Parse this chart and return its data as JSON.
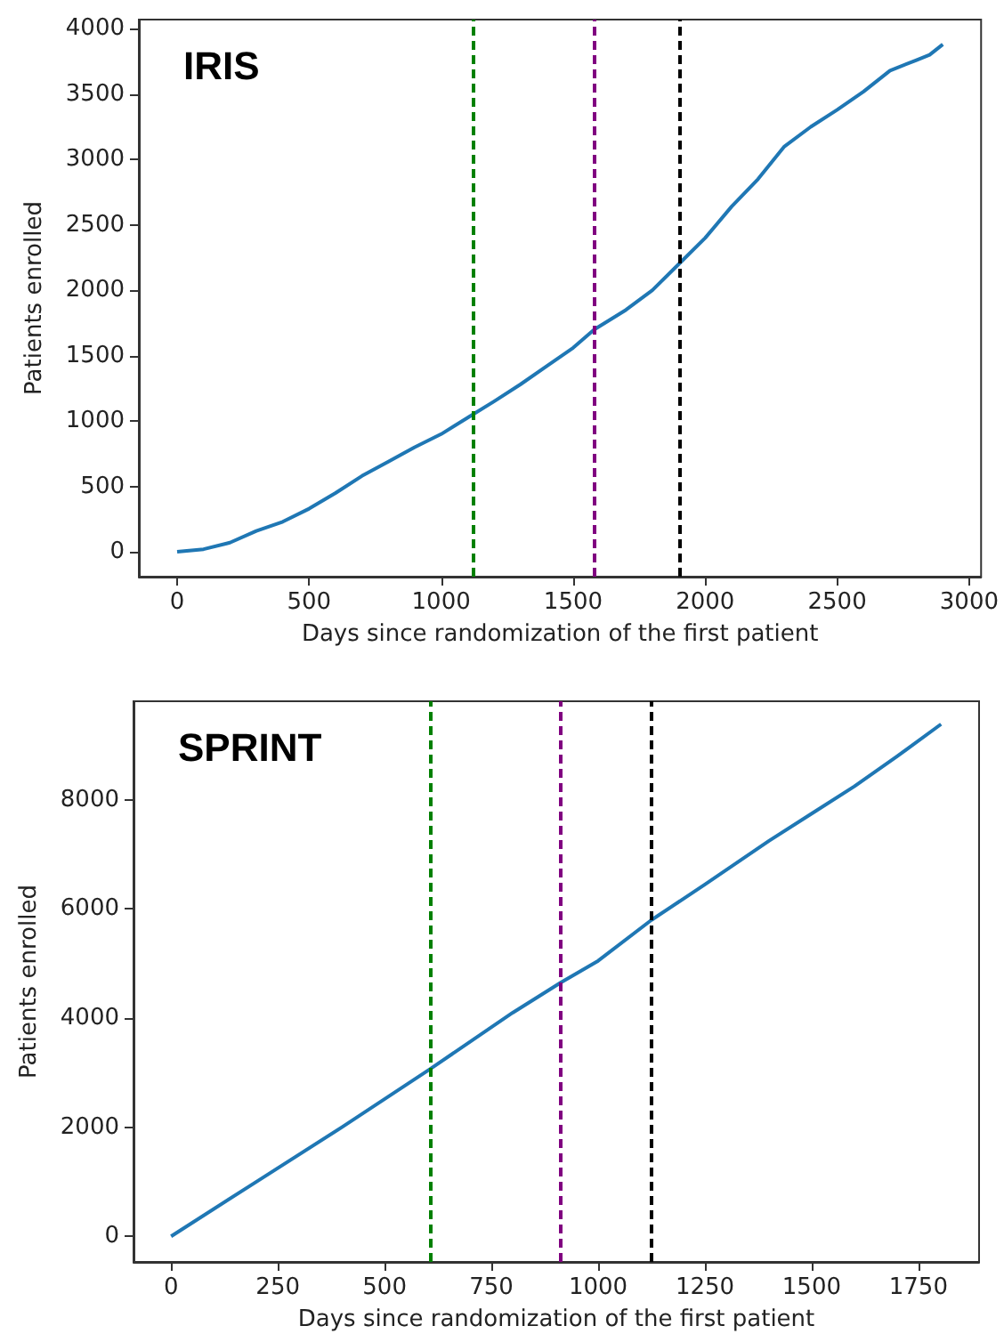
{
  "chart_data": [
    {
      "type": "line",
      "title": "IRIS",
      "xlabel": "Days since randomization of the first patient",
      "ylabel": "Patients enrolled",
      "xlim": [
        -145,
        3045
      ],
      "ylim": [
        -190,
        4070
      ],
      "xticks": [
        0,
        500,
        1000,
        1500,
        2000,
        2500,
        3000
      ],
      "yticks": [
        0,
        500,
        1000,
        1500,
        2000,
        2500,
        3000,
        3500,
        4000
      ],
      "grid": false,
      "marker": "none",
      "line_style": "solid",
      "series": [
        {
          "color": "#1f77b4",
          "x": [
            0,
            100,
            200,
            300,
            400,
            500,
            600,
            700,
            800,
            900,
            1000,
            1120,
            1200,
            1300,
            1400,
            1500,
            1580,
            1700,
            1800,
            1900,
            2000,
            2100,
            2200,
            2300,
            2400,
            2500,
            2600,
            2700,
            2800,
            2850,
            2900
          ],
          "values": [
            0,
            20,
            70,
            160,
            230,
            330,
            450,
            580,
            690,
            800,
            900,
            1050,
            1150,
            1280,
            1420,
            1560,
            1700,
            1850,
            2000,
            2200,
            2400,
            2640,
            2850,
            3100,
            3250,
            3380,
            3520,
            3680,
            3760,
            3800,
            3880
          ]
        }
      ],
      "ref_lines": [
        {
          "axis": "x",
          "value": 1120,
          "color": "#008000",
          "line_style": "dashed"
        },
        {
          "axis": "x",
          "value": 1580,
          "color": "#800080",
          "line_style": "dashed"
        },
        {
          "axis": "x",
          "value": 1902,
          "color": "#000000",
          "line_style": "dashed"
        }
      ]
    },
    {
      "type": "line",
      "title": "SPRINT",
      "xlabel": "Days since randomization of the first patient",
      "ylabel": "Patients enrolled",
      "xlim": [
        -88,
        1892
      ],
      "ylim": [
        -470,
        9810
      ],
      "xticks": [
        0,
        250,
        500,
        750,
        1000,
        1250,
        1500,
        1750
      ],
      "yticks": [
        0,
        2000,
        4000,
        6000,
        8000
      ],
      "grid": false,
      "marker": "none",
      "line_style": "solid",
      "series": [
        {
          "color": "#1f77b4",
          "x": [
            0,
            200,
            400,
            607,
            800,
            912,
            1000,
            1125,
            1250,
            1400,
            1500,
            1600,
            1700,
            1803
          ],
          "values": [
            0,
            1000,
            2000,
            3070,
            4100,
            4650,
            5050,
            5800,
            6450,
            7250,
            7750,
            8250,
            8800,
            9390
          ]
        }
      ],
      "ref_lines": [
        {
          "axis": "x",
          "value": 607,
          "color": "#008000",
          "line_style": "dashed"
        },
        {
          "axis": "x",
          "value": 912,
          "color": "#800080",
          "line_style": "dashed"
        },
        {
          "axis": "x",
          "value": 1125,
          "color": "#000000",
          "line_style": "dashed"
        }
      ]
    }
  ]
}
